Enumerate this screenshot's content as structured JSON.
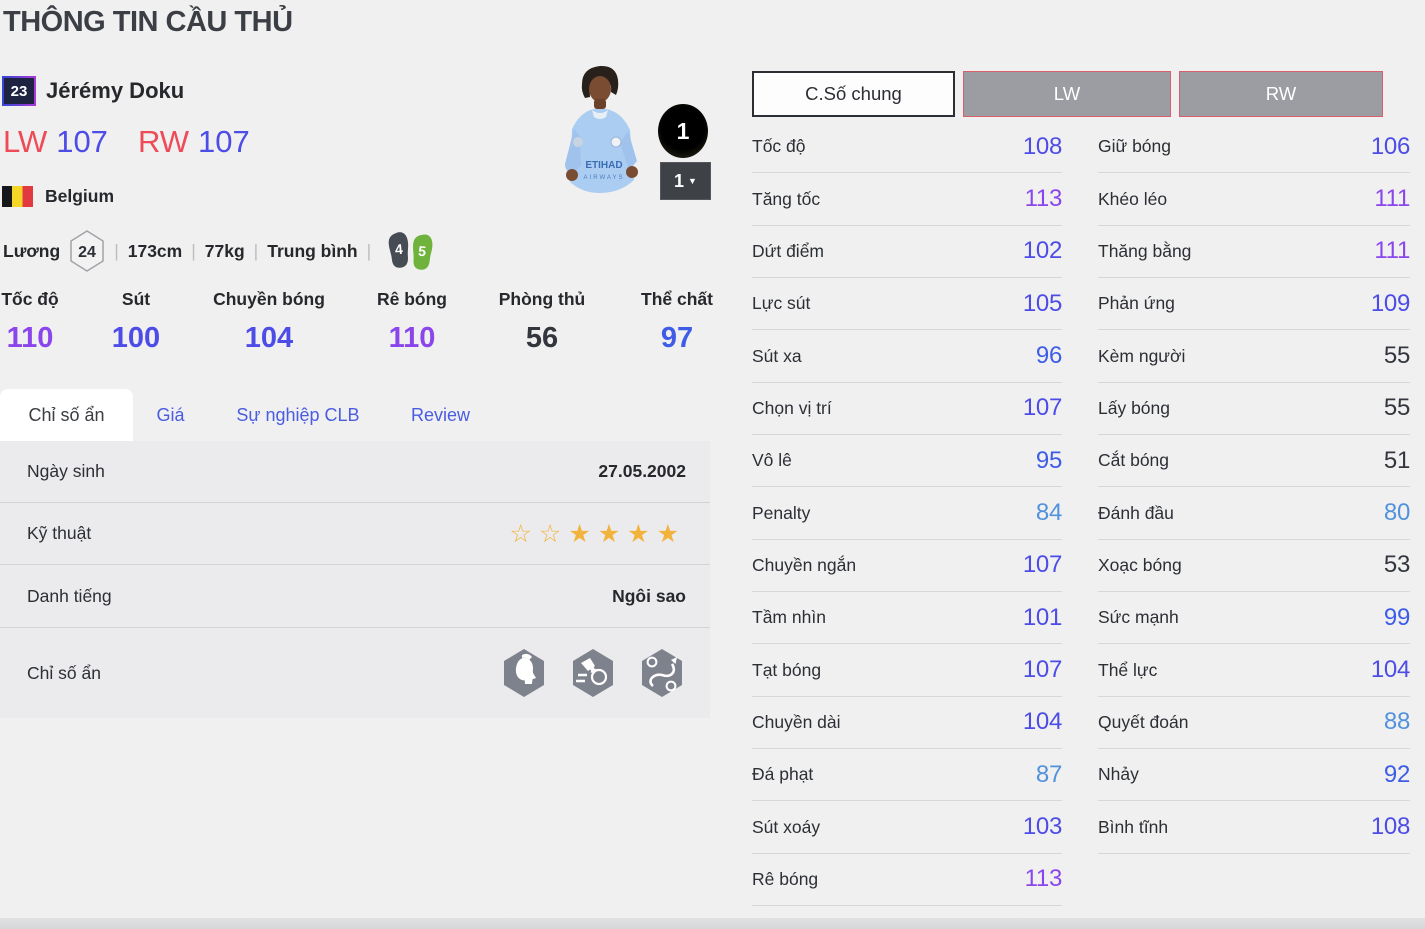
{
  "page": {
    "title": "THÔNG TIN CẦU THỦ"
  },
  "player": {
    "number": "23",
    "name": "Jérémy Doku",
    "ratings": [
      {
        "pos": "LW",
        "value": "107"
      },
      {
        "pos": "RW",
        "value": "107"
      }
    ],
    "nation": "Belgium",
    "salary_label": "Lương",
    "salary": "24",
    "height": "173cm",
    "weight": "77kg",
    "body_type": "Trung bình",
    "separator": "|",
    "weak_foot": "4",
    "skill_foot": "5",
    "level_badge": "1",
    "level_select": "1",
    "jersey_text1": "ETIHAD",
    "jersey_text2": "AIRWAYS"
  },
  "summary_stats": [
    {
      "label": "Tốc độ",
      "value": "110"
    },
    {
      "label": "Sút",
      "value": "100"
    },
    {
      "label": "Chuyền bóng",
      "value": "104"
    },
    {
      "label": "Rê bóng",
      "value": "110"
    },
    {
      "label": "Phòng thủ",
      "value": "56"
    },
    {
      "label": "Thể chất",
      "value": "97"
    }
  ],
  "tabs": [
    {
      "label": "Chỉ số ẩn",
      "active": true
    },
    {
      "label": "Giá",
      "active": false
    },
    {
      "label": "Sự nghiệp CLB",
      "active": false
    },
    {
      "label": "Review",
      "active": false
    }
  ],
  "info_panel": {
    "birth": {
      "label": "Ngày sinh",
      "value": "27.05.2002"
    },
    "skill": {
      "label": "Kỹ thuật",
      "stars_outline": 2,
      "stars_filled": 4
    },
    "fame": {
      "label": "Danh tiếng",
      "value": "Ngôi sao"
    },
    "hidden": {
      "label": "Chỉ số ẩn",
      "icons": [
        "trait-head-icon",
        "trait-shot-icon",
        "trait-dribble-icon"
      ]
    }
  },
  "position_tabs": [
    {
      "label": "C.Số chung",
      "active": true
    },
    {
      "label": "LW",
      "active": false
    },
    {
      "label": "RW",
      "active": false
    }
  ],
  "detail_stats": {
    "left": [
      {
        "label": "Tốc độ",
        "value": "108"
      },
      {
        "label": "Tăng tốc",
        "value": "113"
      },
      {
        "label": "Dứt điểm",
        "value": "102"
      },
      {
        "label": "Lực sút",
        "value": "105"
      },
      {
        "label": "Sút xa",
        "value": "96"
      },
      {
        "label": "Chọn vị trí",
        "value": "107"
      },
      {
        "label": "Vô lê",
        "value": "95"
      },
      {
        "label": "Penalty",
        "value": "84"
      },
      {
        "label": "Chuyền ngắn",
        "value": "107"
      },
      {
        "label": "Tầm nhìn",
        "value": "101"
      },
      {
        "label": "Tạt bóng",
        "value": "107"
      },
      {
        "label": "Chuyền dài",
        "value": "104"
      },
      {
        "label": "Đá phạt",
        "value": "87"
      },
      {
        "label": "Sút xoáy",
        "value": "103"
      },
      {
        "label": "Rê bóng",
        "value": "113"
      }
    ],
    "right": [
      {
        "label": "Giữ bóng",
        "value": "106"
      },
      {
        "label": "Khéo léo",
        "value": "111"
      },
      {
        "label": "Thăng bằng",
        "value": "111"
      },
      {
        "label": "Phản ứng",
        "value": "109"
      },
      {
        "label": "Kèm người",
        "value": "55"
      },
      {
        "label": "Lấy bóng",
        "value": "55"
      },
      {
        "label": "Cắt bóng",
        "value": "51"
      },
      {
        "label": "Đánh đầu",
        "value": "80"
      },
      {
        "label": "Xoạc bóng",
        "value": "53"
      },
      {
        "label": "Sức mạnh",
        "value": "99"
      },
      {
        "label": "Thể lực",
        "value": "104"
      },
      {
        "label": "Quyết đoán",
        "value": "88"
      },
      {
        "label": "Nhảy",
        "value": "92"
      },
      {
        "label": "Bình tĩnh",
        "value": "108"
      }
    ]
  },
  "colors": {
    "tier_purple": "#8a46ec",
    "tier_indigo": "#4d4ce6",
    "tier_blue": "#3d5de6",
    "tier_lightblue": "#5292dc",
    "tier_dark": "#33373d",
    "pos_red": "#ee4b58",
    "tab_blue": "#4a5ce0",
    "star_gold": "#f2b33d",
    "foot_dark": "#474b54",
    "foot_green": "#6fb33c"
  }
}
